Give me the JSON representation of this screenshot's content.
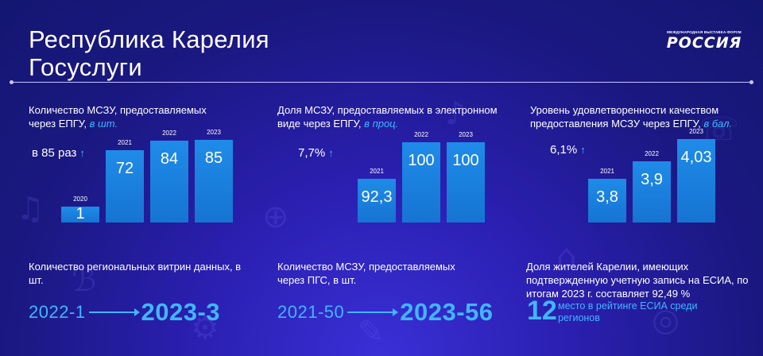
{
  "header": {
    "title_line1": "Республика Карелия",
    "title_line2": "Госуслуги",
    "logo_subtitle": "МЕЖДУНАРОДНАЯ ВЫСТАВКА-ФОРУМ",
    "logo_title": "РОССИЯ"
  },
  "colors": {
    "accent": "#41b6ff",
    "bar": "#1a80de",
    "background": "#221a9e"
  },
  "chart_data": [
    {
      "type": "bar",
      "title": "Количество МСЗУ, предоставляемых через ЕПГУ,",
      "unit": "в шт.",
      "growth": "в 85 раз",
      "categories": [
        "2020",
        "2021",
        "2022",
        "2023"
      ],
      "values": [
        1,
        72,
        84,
        85
      ],
      "labels": [
        "1",
        "72",
        "84",
        "85"
      ],
      "ylim": [
        0,
        85
      ]
    },
    {
      "type": "bar",
      "title": "Доля МСЗУ, предоставляемых в электронном виде через ЕПГУ,",
      "unit": "в проц.",
      "growth": "7,7%",
      "categories": [
        "2021",
        "2022",
        "2023"
      ],
      "values": [
        92.3,
        100,
        100
      ],
      "labels": [
        "92,3",
        "100",
        "100"
      ],
      "ylim": [
        0,
        100
      ]
    },
    {
      "type": "bar",
      "title": "Уровень удовлетворенности качеством предоставления МСЗУ через ЕПГУ,",
      "unit": "в бал.",
      "growth": "6,1%",
      "categories": [
        "2021",
        "2022",
        "2023"
      ],
      "values": [
        3.8,
        3.9,
        4.03
      ],
      "labels": [
        "3,8",
        "3,9",
        "4,03"
      ],
      "ylim": [
        0,
        4.03
      ]
    }
  ],
  "stats": [
    {
      "title": "Количество региональных витрин данных, в шт.",
      "from": "2022-1",
      "to": "2023-3"
    },
    {
      "title": "Количество МСЗУ, предоставляемых через ПГС, в шт.",
      "from": "2021-50",
      "to": "2023-56"
    }
  ],
  "esia": {
    "title": "Доля жителей Карелии, имеющих подтвержденную учетную запись на ЕСИА, по итогам 2023 г. составляет 92,49 %",
    "rank": "12",
    "rank_text": "место в рейтинге ЕСИА среди регионов"
  }
}
